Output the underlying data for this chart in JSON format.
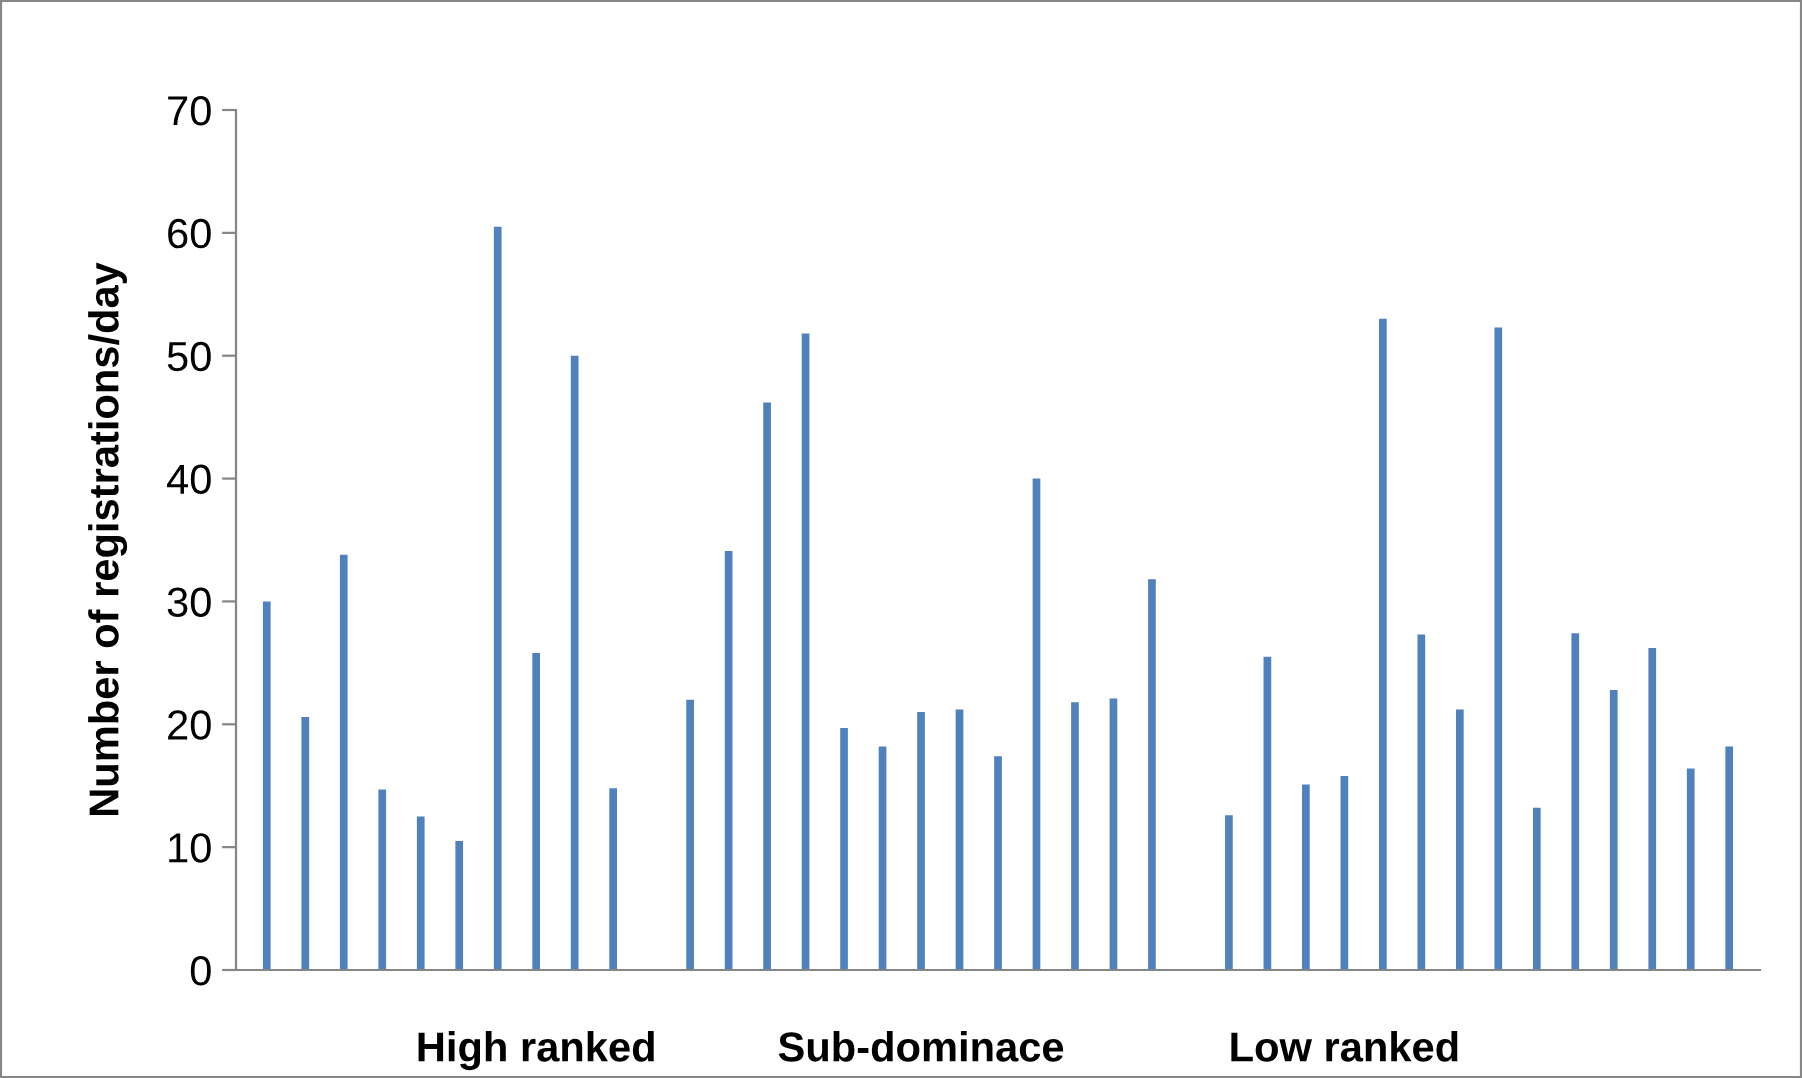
{
  "chart_data": {
    "type": "bar",
    "ylabel": "Number of registrations/day",
    "categories": [
      null,
      null,
      null,
      null,
      null,
      null,
      null,
      "High ranked",
      null,
      null,
      null,
      null,
      null,
      null,
      null,
      null,
      null,
      "Sub-dominace",
      null,
      null,
      null,
      null,
      null,
      null,
      null,
      null,
      null,
      null,
      "Low ranked",
      null,
      null,
      null,
      null,
      null,
      null,
      null,
      null,
      null,
      null
    ],
    "values": [
      30,
      20.6,
      33.8,
      14.7,
      12.5,
      10.5,
      60.5,
      25.8,
      50,
      14.8,
      null,
      22,
      34.1,
      46.2,
      51.8,
      19.7,
      18.2,
      21,
      21.2,
      17.4,
      40,
      21.8,
      22.1,
      31.8,
      null,
      12.6,
      25.5,
      15.1,
      15.8,
      53,
      27.3,
      21.2,
      52.3,
      13.2,
      27.4,
      22.8,
      26.2,
      16.4,
      18.2
    ],
    "color": "#4f81bd",
    "ylim": [
      0,
      70
    ],
    "yticks": [
      0,
      10,
      20,
      30,
      40,
      50,
      60,
      70
    ],
    "grid": false,
    "legend": false
  }
}
